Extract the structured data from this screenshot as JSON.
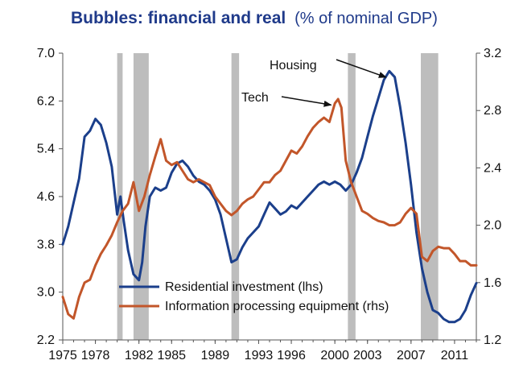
{
  "chart_data": {
    "type": "line",
    "title": "Bubbles: financial and real",
    "subtitle": "(% of nominal GDP)",
    "x_range": [
      1975,
      2013
    ],
    "x_ticks": [
      "1975",
      "1978",
      "1982",
      "1985",
      "1989",
      "1993",
      "1996",
      "2000",
      "2003",
      "2007",
      "2011"
    ],
    "x_tick_values": [
      1975,
      1978,
      1982,
      1985,
      1989,
      1993,
      1996,
      2000,
      2003,
      2007,
      2011
    ],
    "y_left": {
      "range": [
        2.2,
        7.0
      ],
      "ticks": [
        "2.2",
        "3.0",
        "3.8",
        "4.6",
        "5.4",
        "6.2",
        "7.0"
      ]
    },
    "y_right": {
      "range": [
        1.2,
        3.2
      ],
      "ticks": [
        "1.2",
        "1.6",
        "2.0",
        "2.4",
        "2.8",
        "3.2"
      ]
    },
    "recessions": [
      [
        1980.0,
        1980.5
      ],
      [
        1981.5,
        1982.9
      ],
      [
        1990.5,
        1991.2
      ],
      [
        2001.2,
        2001.9
      ],
      [
        2007.9,
        2009.5
      ]
    ],
    "series": [
      {
        "name": "Residential investment (lhs)",
        "axis": "left",
        "color": "#1b3f8b",
        "x": [
          1975,
          1975.5,
          1976,
          1976.5,
          1977,
          1977.5,
          1978,
          1978.5,
          1979,
          1979.5,
          1980,
          1980.3,
          1980.6,
          1981,
          1981.5,
          1982,
          1982.3,
          1982.6,
          1983,
          1983.5,
          1984,
          1984.5,
          1985,
          1985.5,
          1986,
          1986.5,
          1987,
          1987.5,
          1988,
          1988.5,
          1989,
          1989.5,
          1990,
          1990.5,
          1991,
          1991.5,
          1992,
          1992.5,
          1993,
          1993.5,
          1994,
          1994.5,
          1995,
          1995.5,
          1996,
          1996.5,
          1997,
          1997.5,
          1998,
          1998.5,
          1999,
          1999.5,
          2000,
          2000.5,
          2001,
          2001.5,
          2002,
          2002.5,
          2003,
          2003.5,
          2004,
          2004.5,
          2005,
          2005.5,
          2006,
          2006.5,
          2007,
          2007.5,
          2008,
          2008.5,
          2009,
          2009.5,
          2010,
          2010.5,
          2011,
          2011.5,
          2012,
          2012.5,
          2013
        ],
        "values": [
          3.8,
          4.1,
          4.5,
          4.9,
          5.6,
          5.7,
          5.9,
          5.8,
          5.5,
          5.1,
          4.3,
          4.6,
          4.2,
          3.7,
          3.3,
          3.2,
          3.5,
          4.1,
          4.6,
          4.75,
          4.7,
          4.75,
          5.0,
          5.15,
          5.2,
          5.1,
          4.95,
          4.85,
          4.8,
          4.7,
          4.55,
          4.3,
          3.9,
          3.5,
          3.55,
          3.75,
          3.9,
          4.0,
          4.1,
          4.3,
          4.5,
          4.4,
          4.3,
          4.35,
          4.45,
          4.4,
          4.5,
          4.6,
          4.7,
          4.8,
          4.85,
          4.8,
          4.85,
          4.8,
          4.7,
          4.8,
          5.0,
          5.25,
          5.6,
          5.95,
          6.25,
          6.55,
          6.7,
          6.6,
          6.1,
          5.5,
          4.8,
          4.0,
          3.4,
          3.0,
          2.7,
          2.65,
          2.55,
          2.5,
          2.5,
          2.55,
          2.7,
          2.95,
          3.15
        ]
      },
      {
        "name": "Information processing equipment (rhs)",
        "axis": "right",
        "color": "#c2562a",
        "x": [
          1975,
          1975.5,
          1976,
          1976.5,
          1977,
          1977.5,
          1978,
          1978.5,
          1979,
          1979.5,
          1980,
          1980.5,
          1981,
          1981.5,
          1982,
          1982.5,
          1983,
          1983.5,
          1984,
          1984.5,
          1985,
          1985.5,
          1986,
          1986.5,
          1987,
          1987.5,
          1988,
          1988.5,
          1989,
          1989.5,
          1990,
          1990.5,
          1991,
          1991.5,
          1992,
          1992.5,
          1993,
          1993.5,
          1994,
          1994.5,
          1995,
          1995.5,
          1996,
          1996.5,
          1997,
          1997.5,
          1998,
          1998.5,
          1999,
          1999.5,
          2000,
          2000.3,
          2000.6,
          2001,
          2001.5,
          2002,
          2002.5,
          2003,
          2003.5,
          2004,
          2004.5,
          2005,
          2005.5,
          2006,
          2006.5,
          2007,
          2007.5,
          2008,
          2008.5,
          2009,
          2009.5,
          2010,
          2010.5,
          2011,
          2011.5,
          2012,
          2012.5,
          2013
        ],
        "values": [
          1.5,
          1.38,
          1.35,
          1.5,
          1.6,
          1.62,
          1.72,
          1.8,
          1.86,
          1.93,
          2.02,
          2.1,
          2.15,
          2.3,
          2.1,
          2.2,
          2.35,
          2.48,
          2.6,
          2.45,
          2.42,
          2.44,
          2.38,
          2.32,
          2.3,
          2.32,
          2.3,
          2.28,
          2.2,
          2.15,
          2.1,
          2.07,
          2.1,
          2.15,
          2.18,
          2.2,
          2.25,
          2.3,
          2.3,
          2.35,
          2.38,
          2.45,
          2.52,
          2.5,
          2.55,
          2.62,
          2.68,
          2.72,
          2.75,
          2.72,
          2.85,
          2.88,
          2.82,
          2.45,
          2.3,
          2.2,
          2.1,
          2.08,
          2.05,
          2.03,
          2.02,
          2.0,
          2.0,
          2.02,
          2.08,
          2.12,
          2.08,
          1.78,
          1.75,
          1.82,
          1.85,
          1.84,
          1.84,
          1.8,
          1.75,
          1.75,
          1.72,
          1.72
        ]
      }
    ],
    "annotations": [
      {
        "label": "Housing",
        "target_x": 2005.3,
        "target_axis": "left",
        "target_y": 6.65
      },
      {
        "label": "Tech",
        "target_x": 2000.4,
        "target_axis": "right",
        "target_y": 2.85
      }
    ],
    "legend": {
      "position": "bottom-left",
      "entries": [
        "Residential investment (lhs)",
        "Information processing equipment (rhs)"
      ]
    }
  },
  "colors": {
    "title": "#1f3a8a",
    "recession": "#bdbdbd",
    "axis": "#555555"
  }
}
